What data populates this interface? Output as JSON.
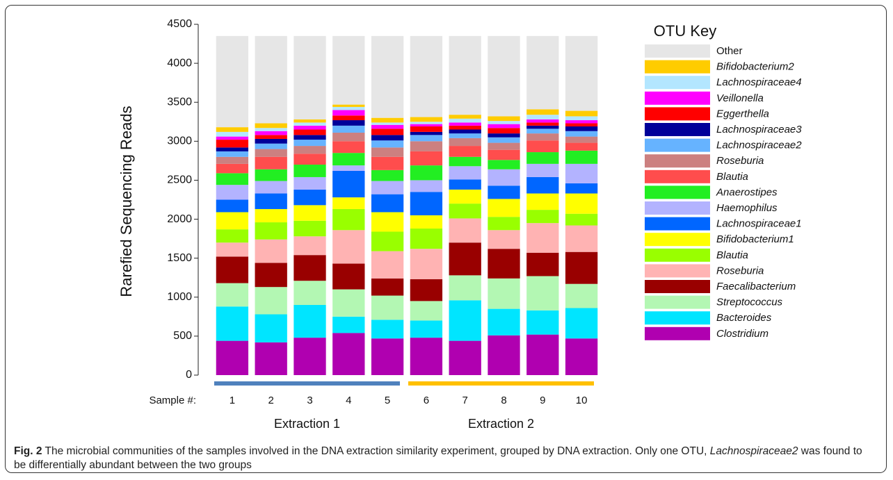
{
  "chart_data": {
    "type": "stacked_bar",
    "ylabel": "Rarefied Sequencing Reads",
    "xlabel": "Sample #:",
    "legend_title": "OTU Key",
    "legend_position": "right",
    "categories": [
      "1",
      "2",
      "3",
      "4",
      "5",
      "6",
      "7",
      "8",
      "9",
      "10"
    ],
    "groups": [
      {
        "label": "Extraction 1",
        "color": "#4f81bd"
      },
      {
        "label": "Extraction 2",
        "color": "#ffc000"
      }
    ],
    "ylim": [
      0,
      4500
    ],
    "yticks": [
      0,
      500,
      1000,
      1500,
      2000,
      2500,
      3000,
      3500,
      4000,
      4500
    ],
    "series": [
      {
        "name": "Clostridium",
        "color": "#b000b0",
        "values": [
          440,
          420,
          480,
          540,
          470,
          480,
          440,
          510,
          520,
          470
        ]
      },
      {
        "name": "Bacteroides",
        "color": "#00e5ff",
        "values": [
          440,
          360,
          420,
          210,
          240,
          220,
          520,
          340,
          310,
          390
        ]
      },
      {
        "name": "Streptococcus",
        "color": "#b3f7b3",
        "values": [
          300,
          350,
          310,
          350,
          310,
          250,
          320,
          390,
          440,
          310
        ]
      },
      {
        "name": "Faecalibacterium",
        "color": "#990000",
        "values": [
          340,
          310,
          330,
          330,
          220,
          280,
          420,
          380,
          300,
          410
        ]
      },
      {
        "name": "Roseburia",
        "color": "#ffb3b3",
        "values": [
          180,
          300,
          240,
          430,
          350,
          390,
          310,
          240,
          380,
          340
        ]
      },
      {
        "name": "Blautia",
        "color": "#99ff00",
        "values": [
          170,
          220,
          200,
          270,
          250,
          260,
          190,
          170,
          170,
          150
        ]
      },
      {
        "name": "Bifidobacterium1",
        "color": "#ffff00",
        "values": [
          220,
          170,
          200,
          150,
          250,
          170,
          180,
          230,
          210,
          260
        ]
      },
      {
        "name": "Lachnospiraceae1",
        "color": "#0066ff",
        "values": [
          160,
          200,
          200,
          340,
          230,
          300,
          130,
          170,
          210,
          130
        ]
      },
      {
        "name": "Haemophilus",
        "color": "#b3b3ff",
        "values": [
          190,
          160,
          160,
          70,
          170,
          150,
          170,
          210,
          170,
          250
        ]
      },
      {
        "name": "Anaerostipes",
        "color": "#22ee22",
        "values": [
          150,
          150,
          160,
          160,
          140,
          190,
          120,
          120,
          150,
          170
        ]
      },
      {
        "name": "Blautia",
        "color": "#ff4d4d",
        "values": [
          120,
          160,
          140,
          150,
          170,
          180,
          140,
          130,
          150,
          100
        ]
      },
      {
        "name": "Roseburia",
        "color": "#cc8080",
        "values": [
          90,
          100,
          100,
          110,
          120,
          130,
          100,
          90,
          90,
          80
        ]
      },
      {
        "name": "Lachnospiraceae2",
        "color": "#66b3ff",
        "values": [
          70,
          70,
          80,
          90,
          90,
          80,
          60,
          70,
          60,
          70
        ]
      },
      {
        "name": "Lachnospiraceae3",
        "color": "#000099",
        "values": [
          50,
          60,
          60,
          70,
          70,
          40,
          50,
          50,
          40,
          60
        ]
      },
      {
        "name": "Eggerthella",
        "color": "#ff0000",
        "values": [
          100,
          50,
          70,
          60,
          80,
          70,
          50,
          70,
          40,
          40
        ]
      },
      {
        "name": "Veillonella",
        "color": "#ff00ff",
        "values": [
          40,
          50,
          50,
          70,
          50,
          30,
          40,
          50,
          40,
          40
        ]
      },
      {
        "name": "Lachnospiraceae4",
        "color": "#b3e6ff",
        "values": [
          60,
          40,
          40,
          40,
          30,
          30,
          50,
          40,
          60,
          50
        ]
      },
      {
        "name": "Bifidobacterium2",
        "color": "#ffcc00",
        "values": [
          60,
          60,
          40,
          30,
          60,
          60,
          50,
          60,
          70,
          70
        ]
      },
      {
        "name": "Other",
        "color": "#e6e6e6",
        "values": [
          1170,
          1120,
          1070,
          880,
          1050,
          1040,
          1010,
          1030,
          940,
          960
        ]
      }
    ]
  },
  "caption": {
    "label": "Fig. 2",
    "text_before": "The microbial communities of the samples involved in the DNA extraction similarity experiment, grouped by DNA extraction. Only one OTU,",
    "italic": "Lachnospiraceae2",
    "text_after": "was found to be differentially abundant between the two groups"
  }
}
